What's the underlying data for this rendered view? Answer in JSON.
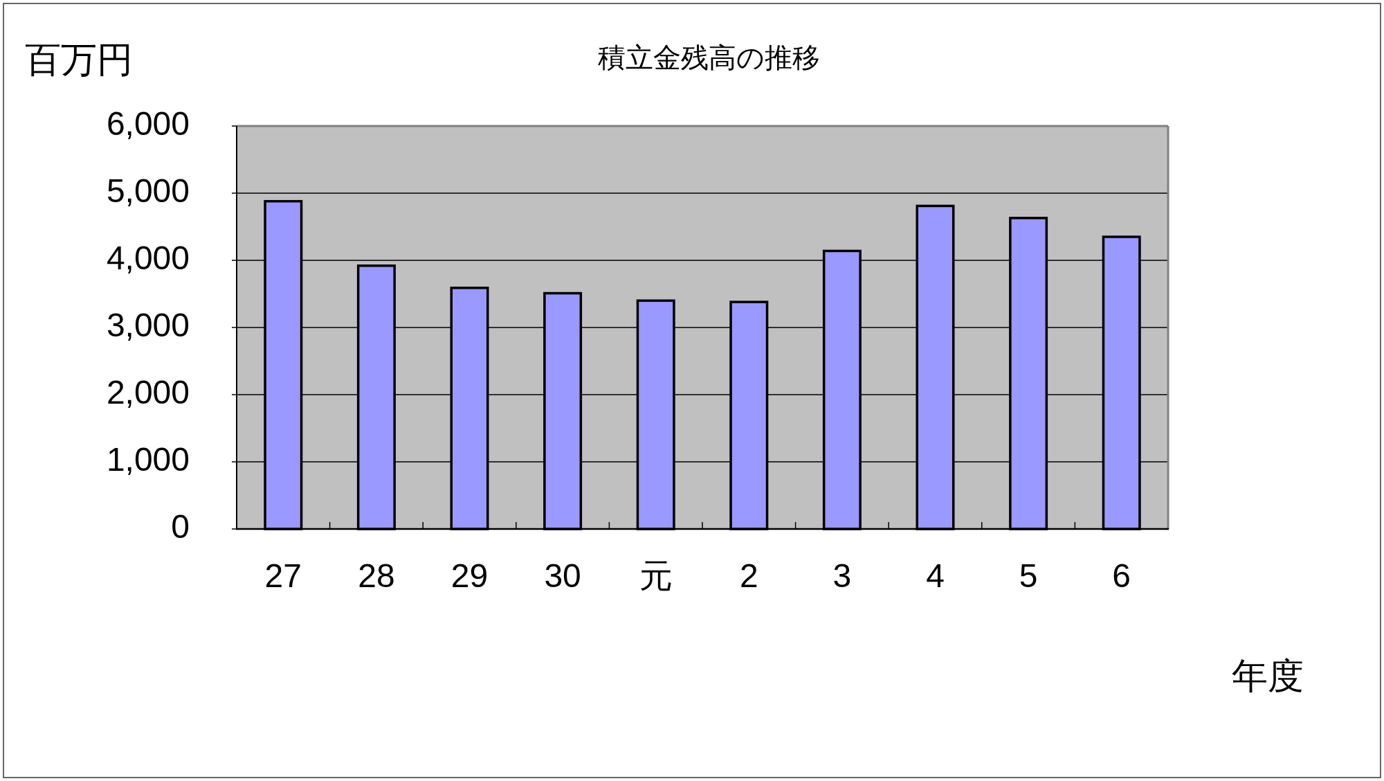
{
  "chart_data": {
    "type": "bar",
    "title": "積立金残高の推移",
    "ylabel": "百万円",
    "xlabel": "年度",
    "categories": [
      "27",
      "28",
      "29",
      "30",
      "元",
      "2",
      "3",
      "4",
      "5",
      "6"
    ],
    "values": [
      4880,
      3920,
      3590,
      3510,
      3400,
      3380,
      4140,
      4810,
      4630,
      4350
    ],
    "color": "#9999ff",
    "ylim": [
      0,
      6000
    ],
    "yticks": [
      0,
      {
        "value": 1000,
        "label": "1,000"
      },
      {
        "value": 2000,
        "label": "2,000"
      },
      {
        "value": 3000,
        "label": "3,000"
      },
      {
        "value": 4000,
        "label": "4,000"
      },
      {
        "value": 5000,
        "label": "5,000"
      },
      {
        "value": 6000,
        "label": "6,000"
      }
    ],
    "grid": "y"
  }
}
